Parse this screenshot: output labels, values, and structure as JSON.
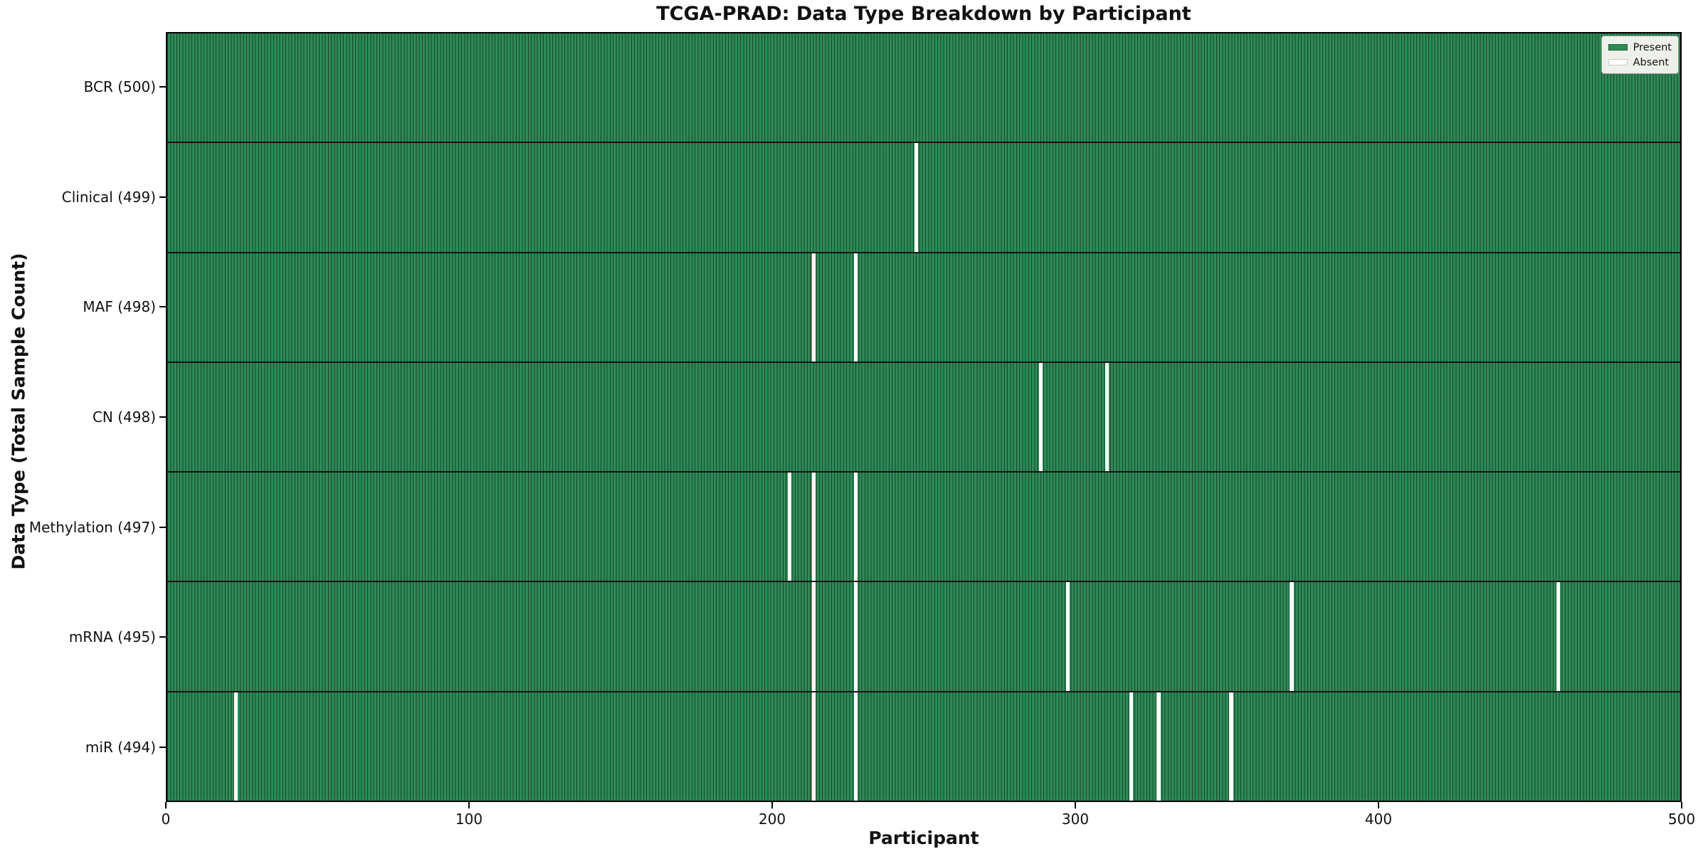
{
  "chart_data": {
    "type": "heatmap",
    "title": "TCGA-PRAD: Data Type Breakdown by Participant",
    "xlabel": "Participant",
    "ylabel": "Data Type (Total Sample Count)",
    "x_range": [
      0,
      500
    ],
    "x_ticks": [
      0,
      100,
      200,
      300,
      400,
      500
    ],
    "n_participants": 500,
    "grid": false,
    "colors": {
      "present": "#2e8b57",
      "absent": "#ffffff",
      "cell_edge": "rgba(0,0,0,0.5)",
      "row_divider": "#141414",
      "legend_background": "#eef1ea"
    },
    "legend": {
      "position": "upper right",
      "entries": [
        {
          "label": "Present",
          "color": "#2e8b57"
        },
        {
          "label": "Absent",
          "color": "#ffffff"
        }
      ]
    },
    "rows": [
      {
        "label": "BCR (500)",
        "data_type": "bcr",
        "present_count": 500,
        "absent_participants": []
      },
      {
        "label": "Clinical (499)",
        "data_type": "clinical",
        "present_count": 499,
        "absent_participants": [
          247
        ]
      },
      {
        "label": "MAF (498)",
        "data_type": "maf",
        "present_count": 498,
        "absent_participants": [
          213,
          227
        ]
      },
      {
        "label": "CN (498)",
        "data_type": "cn",
        "present_count": 498,
        "absent_participants": [
          288,
          310
        ]
      },
      {
        "label": "Methylation (497)",
        "data_type": "methylation",
        "present_count": 497,
        "absent_participants": [
          205,
          213,
          227
        ]
      },
      {
        "label": "mRNA (495)",
        "data_type": "mrna",
        "present_count": 495,
        "absent_participants": [
          213,
          227,
          297,
          371,
          459
        ]
      },
      {
        "label": "miR (494)",
        "data_type": "mir",
        "present_count": 494,
        "absent_participants": [
          22,
          213,
          227,
          318,
          327,
          351
        ]
      }
    ]
  }
}
